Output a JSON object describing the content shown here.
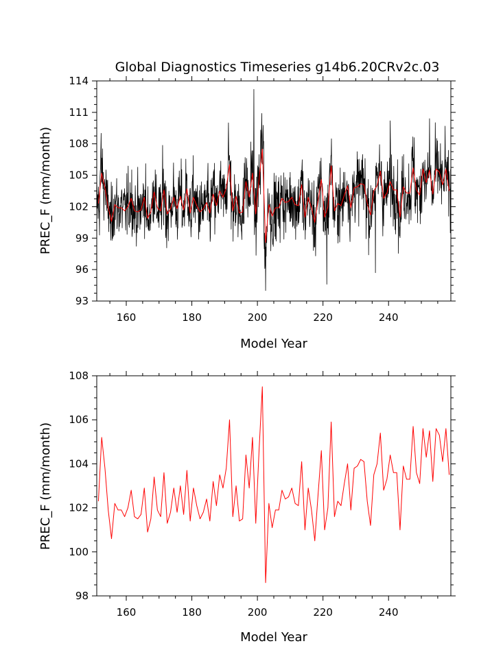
{
  "chart_data": [
    {
      "type": "line",
      "title": "Global Diagnostics Timeseries g14b6.20CRv2c.03",
      "xlabel": "Model Year",
      "ylabel": "PREC_F (mm/month)",
      "xlim": [
        151,
        259
      ],
      "ylim": [
        93,
        114
      ],
      "x_ticks": [
        160,
        180,
        200,
        220,
        240
      ],
      "y_ticks": [
        93,
        96,
        99,
        102,
        105,
        108,
        111,
        114
      ],
      "grid": false,
      "series": [
        {
          "color": "#000000",
          "note_monthly": true,
          "values": []
        },
        {
          "color": "#ff0000",
          "values": []
        }
      ]
    },
    {
      "type": "line",
      "title": "",
      "xlabel": "Model Year",
      "ylabel": "PREC_F (mm/month)",
      "xlim": [
        151,
        259
      ],
      "ylim": [
        98,
        108
      ],
      "x_ticks": [
        160,
        180,
        200,
        220,
        240
      ],
      "y_ticks": [
        98,
        100,
        102,
        104,
        106,
        108
      ],
      "grid": false,
      "series": [
        {
          "color": "#ff0000",
          "x_start": 151,
          "values": [
            102.3,
            105.2,
            103.8,
            101.9,
            100.6,
            102.2,
            101.9,
            101.9,
            101.6,
            102.0,
            102.8,
            101.6,
            101.5,
            101.7,
            102.9,
            100.9,
            101.5,
            103.4,
            101.9,
            101.6,
            103.6,
            101.3,
            101.8,
            102.9,
            101.8,
            103.0,
            101.7,
            103.7,
            101.4,
            102.9,
            102.1,
            101.5,
            101.8,
            102.4,
            101.4,
            103.2,
            102.1,
            103.5,
            102.9,
            103.8,
            106.0,
            101.6,
            103.0,
            101.4,
            101.5,
            104.4,
            102.9,
            105.2,
            101.3,
            104.6,
            107.5,
            98.6,
            102.2,
            101.1,
            101.9,
            101.9,
            102.8,
            102.4,
            102.5,
            102.9,
            102.2,
            102.1,
            104.1,
            101.0,
            102.9,
            101.9,
            100.5,
            102.6,
            104.6,
            101.0,
            102.0,
            105.9,
            101.6,
            102.3,
            102.1,
            103.1,
            104.0,
            101.9,
            103.8,
            103.9,
            104.2,
            104.1,
            102.3,
            101.2,
            103.5,
            104.0,
            105.4,
            102.8,
            103.3,
            104.4,
            103.6,
            103.6,
            101.0,
            103.9,
            103.3,
            103.3,
            105.7,
            103.6,
            103.1,
            105.6,
            104.3,
            105.5,
            103.2,
            105.6,
            105.3,
            104.1,
            105.6,
            103.5
          ]
        }
      ]
    }
  ]
}
